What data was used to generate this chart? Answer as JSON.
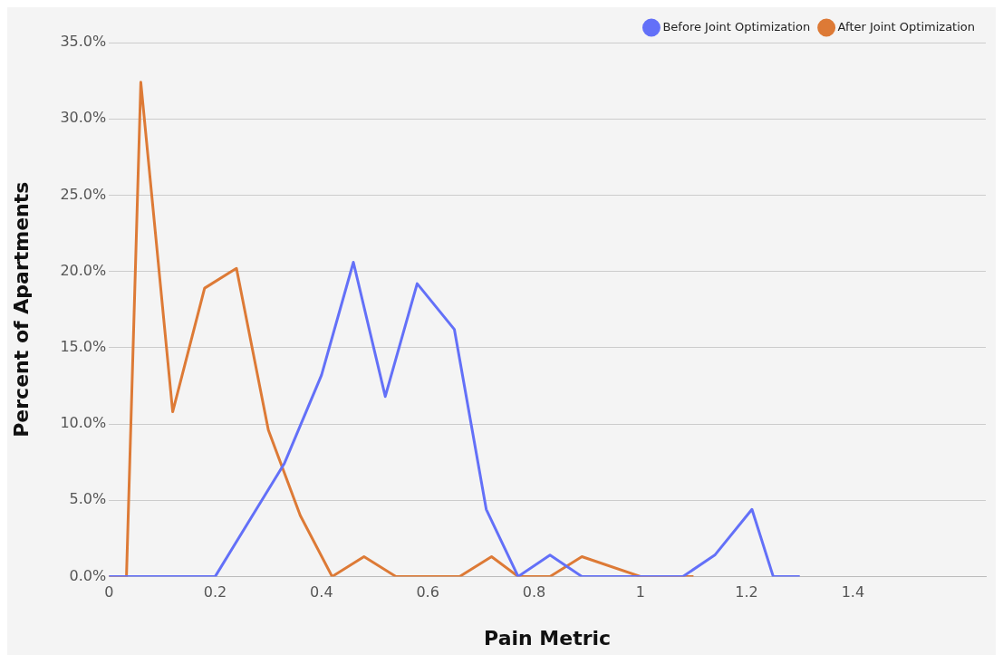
{
  "chart_data": {
    "type": "line",
    "xlabel": "Pain Metric",
    "ylabel": "Percent of Apartments",
    "xlim": [
      0,
      1.65
    ],
    "xticks": [
      0,
      0.2,
      0.4,
      0.6,
      0.8,
      1,
      1.2,
      1.4
    ],
    "ylim": [
      0,
      35
    ],
    "yticks": [
      {
        "value": 0,
        "label": "0.0%"
      },
      {
        "value": 5,
        "label": "5.0%"
      },
      {
        "value": 10,
        "label": "10.0%"
      },
      {
        "value": 15,
        "label": "15.0%"
      },
      {
        "value": 20,
        "label": "20.0%"
      },
      {
        "value": 25,
        "label": "25.0%"
      },
      {
        "value": 30,
        "label": "30.0%"
      },
      {
        "value": 35,
        "label": "35.0%"
      }
    ],
    "grid": "y",
    "legend": "top right",
    "marker": "none",
    "line_style": "solid",
    "series": [
      {
        "name": "Before Joint Optimization",
        "color": "#6370f8",
        "x": [
          0,
          0.06,
          0.12,
          0.2,
          0.33,
          0.4,
          0.46,
          0.52,
          0.58,
          0.65,
          0.71,
          0.77,
          0.83,
          0.89,
          0.95,
          1.02,
          1.08,
          1.14,
          1.21,
          1.25,
          1.3
        ],
        "values": [
          0,
          0,
          0,
          0,
          7.4,
          13.2,
          20.6,
          11.8,
          19.2,
          16.2,
          4.4,
          0,
          1.4,
          0,
          0,
          0,
          0,
          1.4,
          4.4,
          0,
          0
        ]
      },
      {
        "name": "After Joint Optimization",
        "color": "#dd7a36",
        "x": [
          0,
          0.033,
          0.06,
          0.12,
          0.18,
          0.24,
          0.3,
          0.36,
          0.42,
          0.48,
          0.54,
          0.6,
          0.66,
          0.72,
          0.77,
          0.83,
          0.89,
          1,
          1.1
        ],
        "values": [
          0,
          0,
          32.4,
          10.8,
          18.9,
          20.2,
          9.6,
          4.0,
          0,
          1.3,
          0,
          0,
          0,
          1.3,
          0,
          0,
          1.3,
          0,
          0
        ]
      }
    ]
  }
}
